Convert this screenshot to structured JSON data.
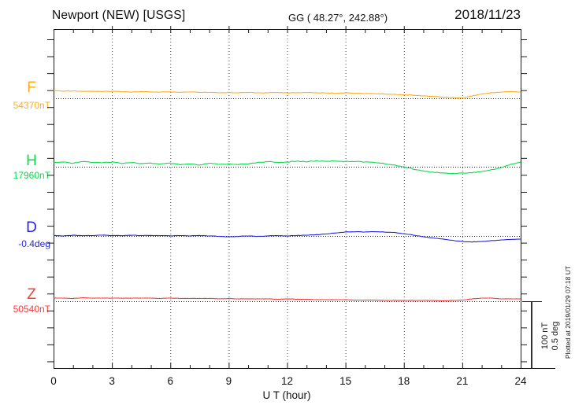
{
  "header": {
    "station": "Newport (NEW)  [USGS]",
    "coords": "GG ( 48.27°, 242.88°)",
    "date": "2018/11/23"
  },
  "x_axis": {
    "label": "U T (hour)",
    "min": 0,
    "max": 24,
    "tick_labels": [
      "0",
      "3",
      "6",
      "9",
      "12",
      "15",
      "18",
      "21",
      "24"
    ]
  },
  "scale_bar": {
    "line1": "100 nT",
    "line2": "0.5 deg"
  },
  "footer_note": "Plotted at 2019/01/29 07:18 UT",
  "colors": {
    "F": "#FFAD21",
    "H": "#0ADC4B",
    "D": "#2424DC",
    "Z": "#FF3838",
    "axis": "#1a1a1a",
    "grid": "#444444"
  },
  "chart_data": {
    "type": "line",
    "title": "Newport (NEW) [USGS] magnetogram 2018/11/23",
    "xlabel": "U T (hour)",
    "x_start_hour": 0,
    "x_step_hour": 0.5,
    "x_ticks": [
      0,
      3,
      6,
      9,
      12,
      15,
      18,
      21,
      24
    ],
    "grid": "dotted vertical every 3 h, dotted baseline per trace",
    "scale": {
      "nT_per_division": 100,
      "deg_per_division": 0.5
    },
    "series": [
      {
        "id": "F",
        "label": "F",
        "ref_label": "54370nT",
        "ref_value": 54370,
        "unit": "nT",
        "values": [
          11.6,
          10.4,
          11,
          10.4,
          10.4,
          9.9,
          10.4,
          9.9,
          9.3,
          9.9,
          9.3,
          9.3,
          9.3,
          8.7,
          9.3,
          8.7,
          8.7,
          8.1,
          8.7,
          8.1,
          8.7,
          8.1,
          8.1,
          8.7,
          8.1,
          8.1,
          8.7,
          8.1,
          8.1,
          7.5,
          8.1,
          7.5,
          7,
          7,
          6.4,
          5.8,
          5.2,
          4.6,
          3.5,
          2.9,
          1.7,
          1.2,
          0.6,
          3.5,
          6.4,
          8.1,
          9.3,
          9.9,
          9.3
        ]
      },
      {
        "id": "H",
        "label": "H",
        "ref_label": "17960nT",
        "ref_value": 17960,
        "unit": "nT",
        "values": [
          5.8,
          7,
          5.2,
          8.1,
          6.4,
          5.8,
          7,
          5.2,
          6.4,
          4.6,
          5.2,
          4.1,
          5.2,
          2.9,
          4.1,
          2.3,
          5.2,
          3.5,
          4.1,
          3.5,
          4.1,
          6.4,
          7.5,
          6.4,
          7,
          8.1,
          7.5,
          8.7,
          8.1,
          8.7,
          7.5,
          8.1,
          7,
          6.4,
          4.6,
          2.3,
          0,
          -3.5,
          -6.4,
          -8.1,
          -9.3,
          -9.9,
          -9.3,
          -8.7,
          -7,
          -4.6,
          -1.2,
          3.5,
          7
        ]
      },
      {
        "id": "D",
        "label": "D",
        "ref_label": "-0.4deg",
        "ref_value": -0.4,
        "unit": "deg",
        "values": [
          0.003,
          0,
          0.006,
          0.003,
          0.003,
          0.006,
          0.003,
          0.003,
          0.006,
          0.003,
          0.003,
          0.003,
          0,
          0.003,
          0,
          0.003,
          0,
          -0.003,
          -0.006,
          -0.003,
          0,
          -0.003,
          0,
          0.003,
          0,
          0.003,
          0.006,
          0.009,
          0.015,
          0.023,
          0.029,
          0.032,
          0.029,
          0.032,
          0.029,
          0.026,
          0.017,
          0.006,
          -0.006,
          -0.015,
          -0.023,
          -0.032,
          -0.041,
          -0.044,
          -0.041,
          -0.035,
          -0.029,
          -0.026,
          -0.023
        ]
      },
      {
        "id": "Z",
        "label": "Z",
        "ref_label": "50540nT",
        "ref_value": 50540,
        "unit": "nT",
        "values": [
          4.6,
          4.6,
          4.1,
          5.2,
          4.6,
          4.6,
          4.6,
          4.6,
          4.6,
          4.6,
          4.6,
          4.1,
          4.6,
          4.1,
          4.1,
          4.1,
          4.1,
          3.5,
          4.1,
          3.5,
          3.5,
          3.5,
          3.5,
          2.9,
          3.5,
          2.9,
          2.9,
          2.3,
          2.3,
          2.3,
          2.3,
          1.7,
          1.7,
          1.7,
          1.2,
          1.2,
          1.2,
          1.2,
          1.2,
          1.2,
          0.6,
          1.2,
          1.7,
          3.5,
          4.6,
          4.6,
          3.5,
          3.5,
          3.5
        ]
      }
    ]
  }
}
